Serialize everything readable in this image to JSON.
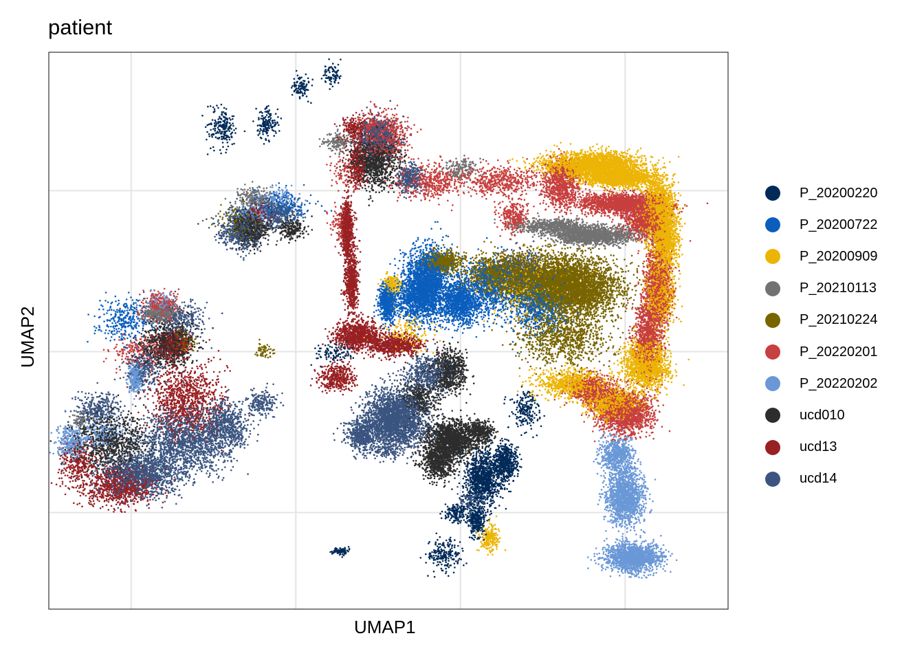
{
  "chart_data": {
    "type": "scatter",
    "title": "patient",
    "xlabel": "UMAP1",
    "ylabel": "UMAP2",
    "grid": true,
    "tick_labels_shown": false,
    "xlim": [
      -7.5,
      9.0
    ],
    "ylim": [
      -8.0,
      9.3
    ],
    "x_gridlines": [
      -5.5,
      -1.5,
      2.5,
      6.5
    ],
    "y_gridlines": [
      -5.0,
      0.0,
      5.0
    ],
    "legend_position": "right",
    "point_size": "small",
    "series": [
      {
        "name": "P_20200220",
        "color": "#012a59",
        "clusters": [
          [
            3.05,
            -3.9,
            0.4,
            0.75,
            1000
          ],
          [
            3.6,
            -3.4,
            0.25,
            0.5,
            500
          ],
          [
            2.9,
            -5.2,
            0.2,
            0.5,
            300
          ],
          [
            -3.3,
            6.9,
            0.3,
            0.6,
            200
          ],
          [
            2.1,
            -6.3,
            0.4,
            0.4,
            200
          ],
          [
            4.1,
            -1.8,
            0.3,
            0.5,
            200
          ],
          [
            -1.4,
            8.2,
            0.2,
            0.3,
            100
          ],
          [
            -0.6,
            8.6,
            0.2,
            0.4,
            80
          ],
          [
            2.4,
            -5.0,
            0.3,
            0.3,
            150
          ],
          [
            -0.4,
            -6.2,
            0.2,
            0.1,
            80
          ],
          [
            -2.2,
            7.1,
            0.2,
            0.4,
            150
          ],
          [
            -0.5,
            0.0,
            0.5,
            0.3,
            100
          ]
        ]
      },
      {
        "name": "P_20200722",
        "color": "#0b5ebd",
        "clusters": [
          [
            1.7,
            2.1,
            0.5,
            1.0,
            2000
          ],
          [
            1.4,
            1.7,
            0.45,
            0.6,
            600
          ],
          [
            0.75,
            1.4,
            0.2,
            0.5,
            400
          ],
          [
            0.7,
            1.7,
            0.12,
            0.35,
            300
          ],
          [
            2.5,
            1.5,
            0.4,
            0.6,
            1000
          ],
          [
            3.2,
            2.0,
            0.6,
            0.8,
            800
          ],
          [
            -1.8,
            4.5,
            0.6,
            0.4,
            200
          ],
          [
            4.4,
            1.5,
            0.6,
            0.8,
            800
          ],
          [
            -5.7,
            1.0,
            0.6,
            0.6,
            300
          ]
        ]
      },
      {
        "name": "P_20200909",
        "color": "#ecb405",
        "clusters": [
          [
            5.7,
            5.8,
            1.1,
            0.35,
            2500
          ],
          [
            6.4,
            5.4,
            0.8,
            0.25,
            1500
          ],
          [
            7.3,
            4.4,
            0.35,
            0.8,
            1500
          ],
          [
            7.45,
            3.5,
            0.3,
            0.9,
            1200
          ],
          [
            7.35,
            1.8,
            0.3,
            0.9,
            900
          ],
          [
            7.0,
            -0.4,
            0.5,
            0.7,
            1500
          ],
          [
            6.2,
            -1.6,
            0.6,
            0.4,
            900
          ],
          [
            5.2,
            -1.0,
            0.8,
            0.4,
            800
          ],
          [
            0.85,
            2.1,
            0.18,
            0.28,
            200
          ],
          [
            4.2,
            2.0,
            0.9,
            0.9,
            400
          ],
          [
            3.2,
            -5.8,
            0.2,
            0.4,
            200
          ],
          [
            1.2,
            0.6,
            0.5,
            0.6,
            150
          ]
        ]
      },
      {
        "name": "P_20210113",
        "color": "#727272",
        "clusters": [
          [
            5.7,
            3.6,
            0.9,
            0.25,
            1500
          ],
          [
            4.7,
            3.9,
            0.8,
            0.2,
            600
          ],
          [
            -4.8,
            1.2,
            0.4,
            0.25,
            400
          ],
          [
            -6.7,
            -2.1,
            0.2,
            0.2,
            80
          ],
          [
            2.5,
            5.7,
            0.4,
            0.3,
            150
          ],
          [
            -2.5,
            4.8,
            0.4,
            0.3,
            200
          ],
          [
            -0.5,
            6.5,
            0.3,
            0.3,
            150
          ]
        ]
      },
      {
        "name": "P_20210224",
        "color": "#786500",
        "clusters": [
          [
            5.3,
            2.0,
            1.0,
            0.8,
            3000
          ],
          [
            4.5,
            2.2,
            0.9,
            0.7,
            2000
          ],
          [
            3.5,
            2.4,
            0.8,
            0.5,
            1200
          ],
          [
            2.1,
            2.8,
            0.4,
            0.3,
            600
          ],
          [
            5.0,
            0.5,
            1.0,
            0.8,
            1000
          ],
          [
            -4.2,
            0.3,
            0.3,
            0.3,
            100
          ],
          [
            -2.3,
            0.0,
            0.2,
            0.2,
            60
          ],
          [
            -2.8,
            4.0,
            0.6,
            0.5,
            150
          ]
        ]
      },
      {
        "name": "P_20220201",
        "color": "#c73f3e",
        "clusters": [
          [
            6.4,
            4.6,
            0.9,
            0.3,
            1500
          ],
          [
            7.0,
            4.1,
            0.45,
            0.5,
            1000
          ],
          [
            7.3,
            2.0,
            0.3,
            1.2,
            1200
          ],
          [
            7.05,
            0.5,
            0.3,
            1.0,
            900
          ],
          [
            6.5,
            -1.9,
            0.6,
            0.6,
            1500
          ],
          [
            5.7,
            -1.2,
            0.5,
            0.4,
            600
          ],
          [
            4.95,
            5.2,
            0.4,
            0.7,
            800
          ],
          [
            0.6,
            6.7,
            0.5,
            0.6,
            800
          ],
          [
            1.8,
            5.3,
            0.8,
            0.5,
            500
          ],
          [
            3.5,
            5.3,
            0.8,
            0.4,
            500
          ],
          [
            3.8,
            4.2,
            0.3,
            0.5,
            300
          ],
          [
            -4.8,
            1.4,
            0.4,
            0.4,
            300
          ],
          [
            -0.3,
            5.6,
            0.3,
            0.5,
            100
          ],
          [
            -0.4,
            4.0,
            0.3,
            0.5,
            100
          ],
          [
            -5.3,
            0.0,
            0.6,
            0.5,
            200
          ],
          [
            0.3,
            7.0,
            0.2,
            0.2,
            100
          ]
        ]
      },
      {
        "name": "P_20220202",
        "color": "#6a98d7",
        "clusters": [
          [
            6.5,
            -4.5,
            0.4,
            0.8,
            1500
          ],
          [
            6.7,
            -6.4,
            0.6,
            0.4,
            1500
          ],
          [
            6.3,
            -3.2,
            0.35,
            0.5,
            600
          ],
          [
            -5.4,
            -0.8,
            0.15,
            0.4,
            300
          ],
          [
            -7.0,
            -2.8,
            0.3,
            0.5,
            300
          ],
          [
            -6.2,
            -2.6,
            0.5,
            0.3,
            200
          ],
          [
            -4.8,
            1.5,
            0.3,
            0.3,
            100
          ],
          [
            -2.5,
            4.3,
            0.5,
            0.3,
            150
          ],
          [
            -2.0,
            4.8,
            0.5,
            0.3,
            100
          ]
        ]
      },
      {
        "name": "ucd010",
        "color": "#2d2d2d",
        "clusters": [
          [
            2.3,
            -2.7,
            0.6,
            0.5,
            1500
          ],
          [
            2.0,
            -3.4,
            0.4,
            0.5,
            700
          ],
          [
            2.2,
            -0.6,
            0.4,
            0.6,
            700
          ],
          [
            1.5,
            -1.5,
            0.4,
            0.5,
            400
          ],
          [
            0.4,
            6.0,
            0.5,
            0.8,
            1200
          ],
          [
            -2.6,
            3.8,
            0.4,
            0.5,
            600
          ],
          [
            -4.6,
            0.2,
            0.6,
            0.6,
            800
          ],
          [
            -6.0,
            -2.8,
            0.8,
            0.8,
            900
          ],
          [
            -1.6,
            3.8,
            0.3,
            0.3,
            200
          ],
          [
            3.0,
            -2.5,
            0.3,
            0.3,
            300
          ]
        ]
      },
      {
        "name": "ucd13",
        "color": "#992023",
        "clusters": [
          [
            -0.25,
            3.8,
            0.13,
            0.8,
            700
          ],
          [
            -0.15,
            2.2,
            0.15,
            0.9,
            600
          ],
          [
            0.0,
            0.5,
            0.5,
            0.4,
            900
          ],
          [
            0.9,
            0.2,
            0.6,
            0.3,
            700
          ],
          [
            -0.5,
            -0.8,
            0.4,
            0.4,
            400
          ],
          [
            0.0,
            5.8,
            0.2,
            0.6,
            300
          ],
          [
            -0.1,
            6.9,
            0.25,
            0.4,
            200
          ],
          [
            -4.2,
            -1.5,
            0.8,
            1.0,
            1000
          ],
          [
            -5.8,
            -4.2,
            0.8,
            0.5,
            800
          ],
          [
            -6.8,
            -3.5,
            0.4,
            0.6,
            300
          ],
          [
            -4.5,
            0.2,
            0.4,
            0.4,
            400
          ],
          [
            -2.4,
            4.3,
            0.3,
            0.4,
            100
          ]
        ]
      },
      {
        "name": "ucd14",
        "color": "#3b5580",
        "clusters": [
          [
            0.9,
            -2.1,
            0.65,
            0.8,
            2600
          ],
          [
            0.1,
            -2.6,
            0.35,
            0.45,
            500
          ],
          [
            1.7,
            -0.7,
            0.5,
            0.5,
            500
          ],
          [
            -4.2,
            -2.8,
            1.0,
            0.9,
            1500
          ],
          [
            -5.3,
            -3.8,
            0.9,
            0.6,
            1200
          ],
          [
            -3.2,
            -2.3,
            0.5,
            0.7,
            600
          ],
          [
            -2.3,
            -1.6,
            0.3,
            0.4,
            200
          ],
          [
            -6.3,
            -1.8,
            0.5,
            0.5,
            300
          ],
          [
            -5.2,
            -0.5,
            0.4,
            0.6,
            300
          ],
          [
            -4.3,
            1.0,
            0.5,
            0.5,
            300
          ],
          [
            0.5,
            6.7,
            0.4,
            0.5,
            600
          ],
          [
            1.3,
            5.4,
            0.3,
            0.4,
            300
          ],
          [
            -2.8,
            3.8,
            0.5,
            0.6,
            600
          ],
          [
            -2.0,
            4.3,
            0.5,
            0.4,
            400
          ],
          [
            0.7,
            -3.1,
            0.3,
            0.2,
            100
          ],
          [
            4.0,
            2.5,
            0.6,
            0.6,
            300
          ],
          [
            2.8,
            -4.6,
            0.3,
            0.3,
            100
          ]
        ]
      }
    ]
  }
}
